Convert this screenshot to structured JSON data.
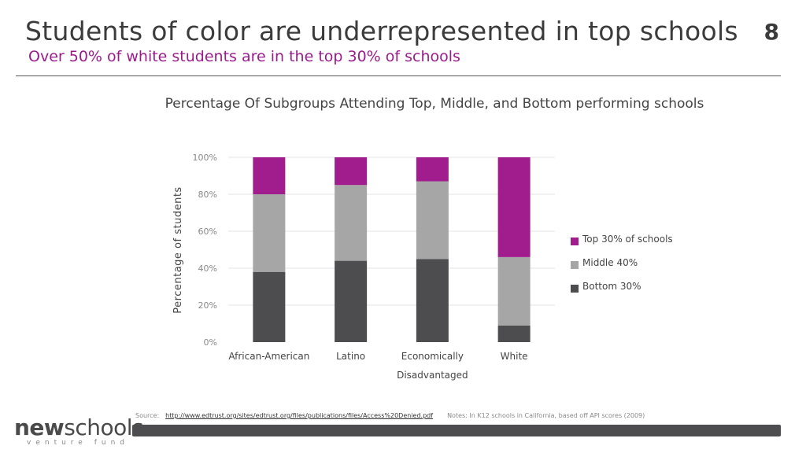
{
  "slide": {
    "title": "Students of color are underrepresented in top schools",
    "subtitle": "Over 50% of white students are in the top 30% of schools",
    "page_number": "8"
  },
  "chart_data": {
    "type": "bar",
    "stacked": true,
    "title": "Percentage Of Subgroups Attending Top, Middle, and Bottom performing schools",
    "xlabel": "",
    "ylabel": "Percentage of students",
    "ylim": [
      0,
      100
    ],
    "yticks": [
      "0%",
      "20%",
      "40%",
      "60%",
      "80%",
      "100%"
    ],
    "categories": [
      "African-American",
      "Latino",
      "Economically Disadvantaged",
      "White"
    ],
    "category_lines": [
      [
        "African-American"
      ],
      [
        "Latino"
      ],
      [
        "Economically",
        "Disadvantaged"
      ],
      [
        "White"
      ]
    ],
    "series": [
      {
        "name": "Bottom 30%",
        "color": "#4d4d4f",
        "values": [
          38,
          44,
          45,
          9
        ]
      },
      {
        "name": "Middle 40%",
        "color": "#a6a6a6",
        "values": [
          42,
          41,
          42,
          37
        ]
      },
      {
        "name": "Top 30% of schools",
        "color": "#a11c8c",
        "values": [
          20,
          15,
          13,
          54
        ]
      }
    ],
    "legend_order": [
      "Top 30% of schools",
      "Middle 40%",
      "Bottom 30%"
    ],
    "legend_position": "right",
    "grid": true
  },
  "footer": {
    "logo_bold": "new",
    "logo_rest": "schools",
    "logo_tagline": "venture fund",
    "source_label": "Source:",
    "source_url": "http://www.edtrust.org/sites/edtrust.org/files/publications/files/Access%20Denied.pdf",
    "notes": "Notes: In K12 schools in California, based off API scores (2009)"
  }
}
